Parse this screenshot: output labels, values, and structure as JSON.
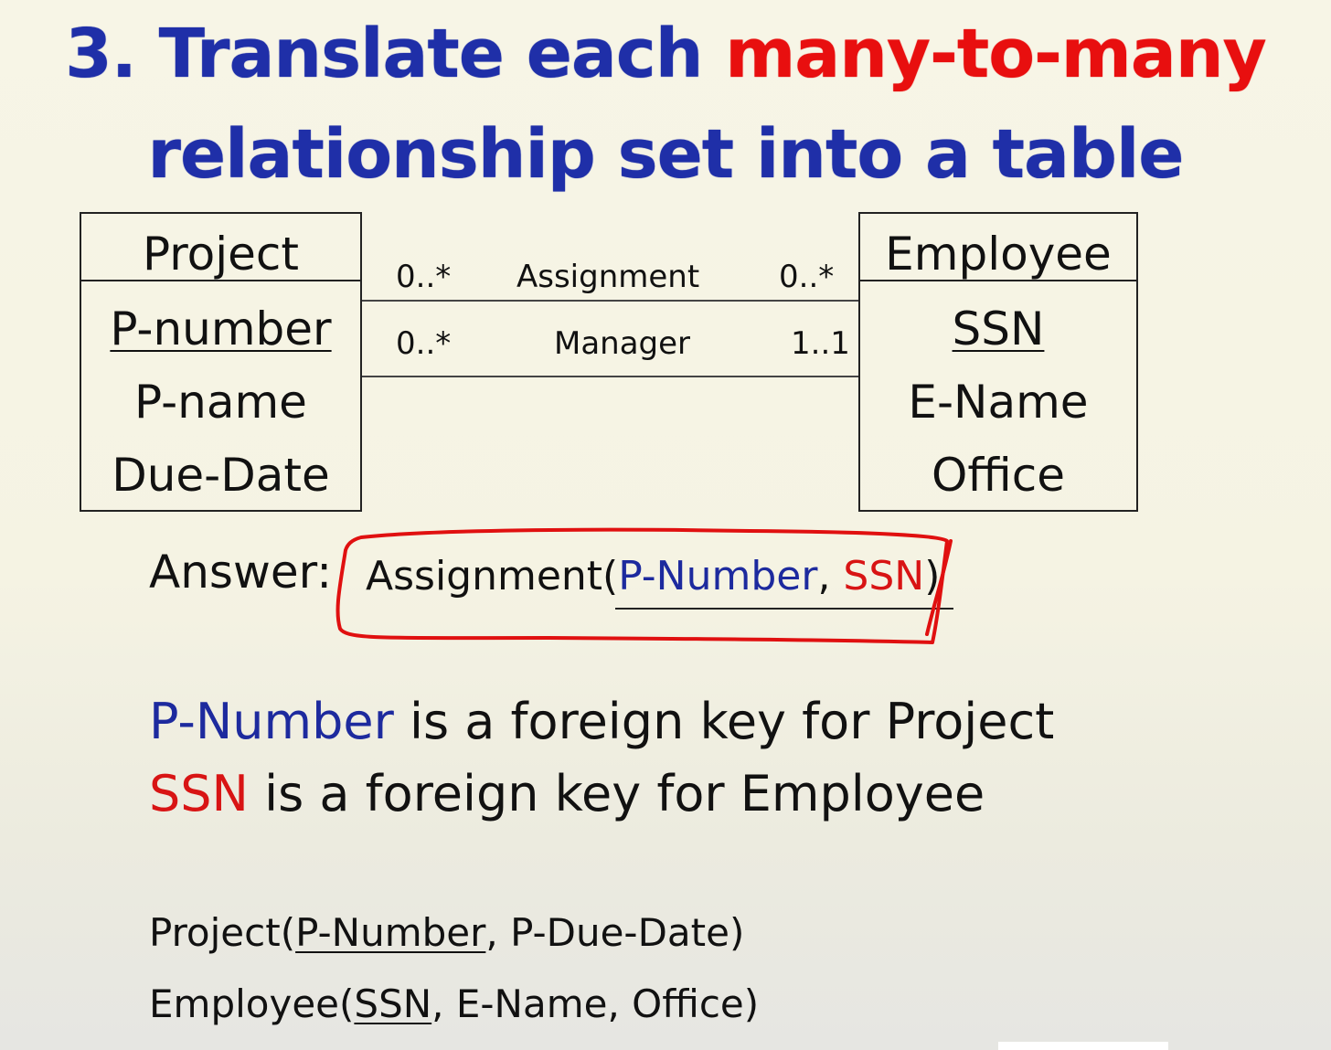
{
  "title": {
    "line1_part1": "3. Translate each",
    "line1_part2": "many-to-many",
    "line2": "relationship set into a table"
  },
  "project": {
    "name": "Project",
    "key": "P-number",
    "attrs": [
      "P-name",
      "Due-Date"
    ]
  },
  "employee": {
    "name": "Employee",
    "key": "SSN",
    "attrs": [
      "E-Name",
      "Office"
    ]
  },
  "relationships": [
    {
      "left": "0..*",
      "name": "Assignment",
      "right": "0..*"
    },
    {
      "left": "0..*",
      "name": "Manager",
      "right": "1..1"
    }
  ],
  "answer": {
    "label": "Answer:",
    "table": "Assignment(",
    "key1": "P-Number",
    "sep": ", ",
    "key2": "SSN",
    "close": ")"
  },
  "foreign_keys": [
    {
      "key": "P-Number",
      "text": " is a foreign key for Project"
    },
    {
      "key": "SSN",
      "text": " is a foreign key for Employee"
    }
  ],
  "schemas": {
    "project": {
      "open": "Project(",
      "key": "P-Number",
      "rest": ", P-Due-Date)"
    },
    "employee": {
      "open": "Employee(",
      "key": "SSN",
      "rest": ", E-Name, Office)"
    }
  },
  "colors": {
    "title_blue": "#1f2fa8",
    "title_red": "#e80f0f",
    "key_blue": "#1d2a9e",
    "key_red": "#d81414",
    "annotation_red": "#e01010"
  }
}
